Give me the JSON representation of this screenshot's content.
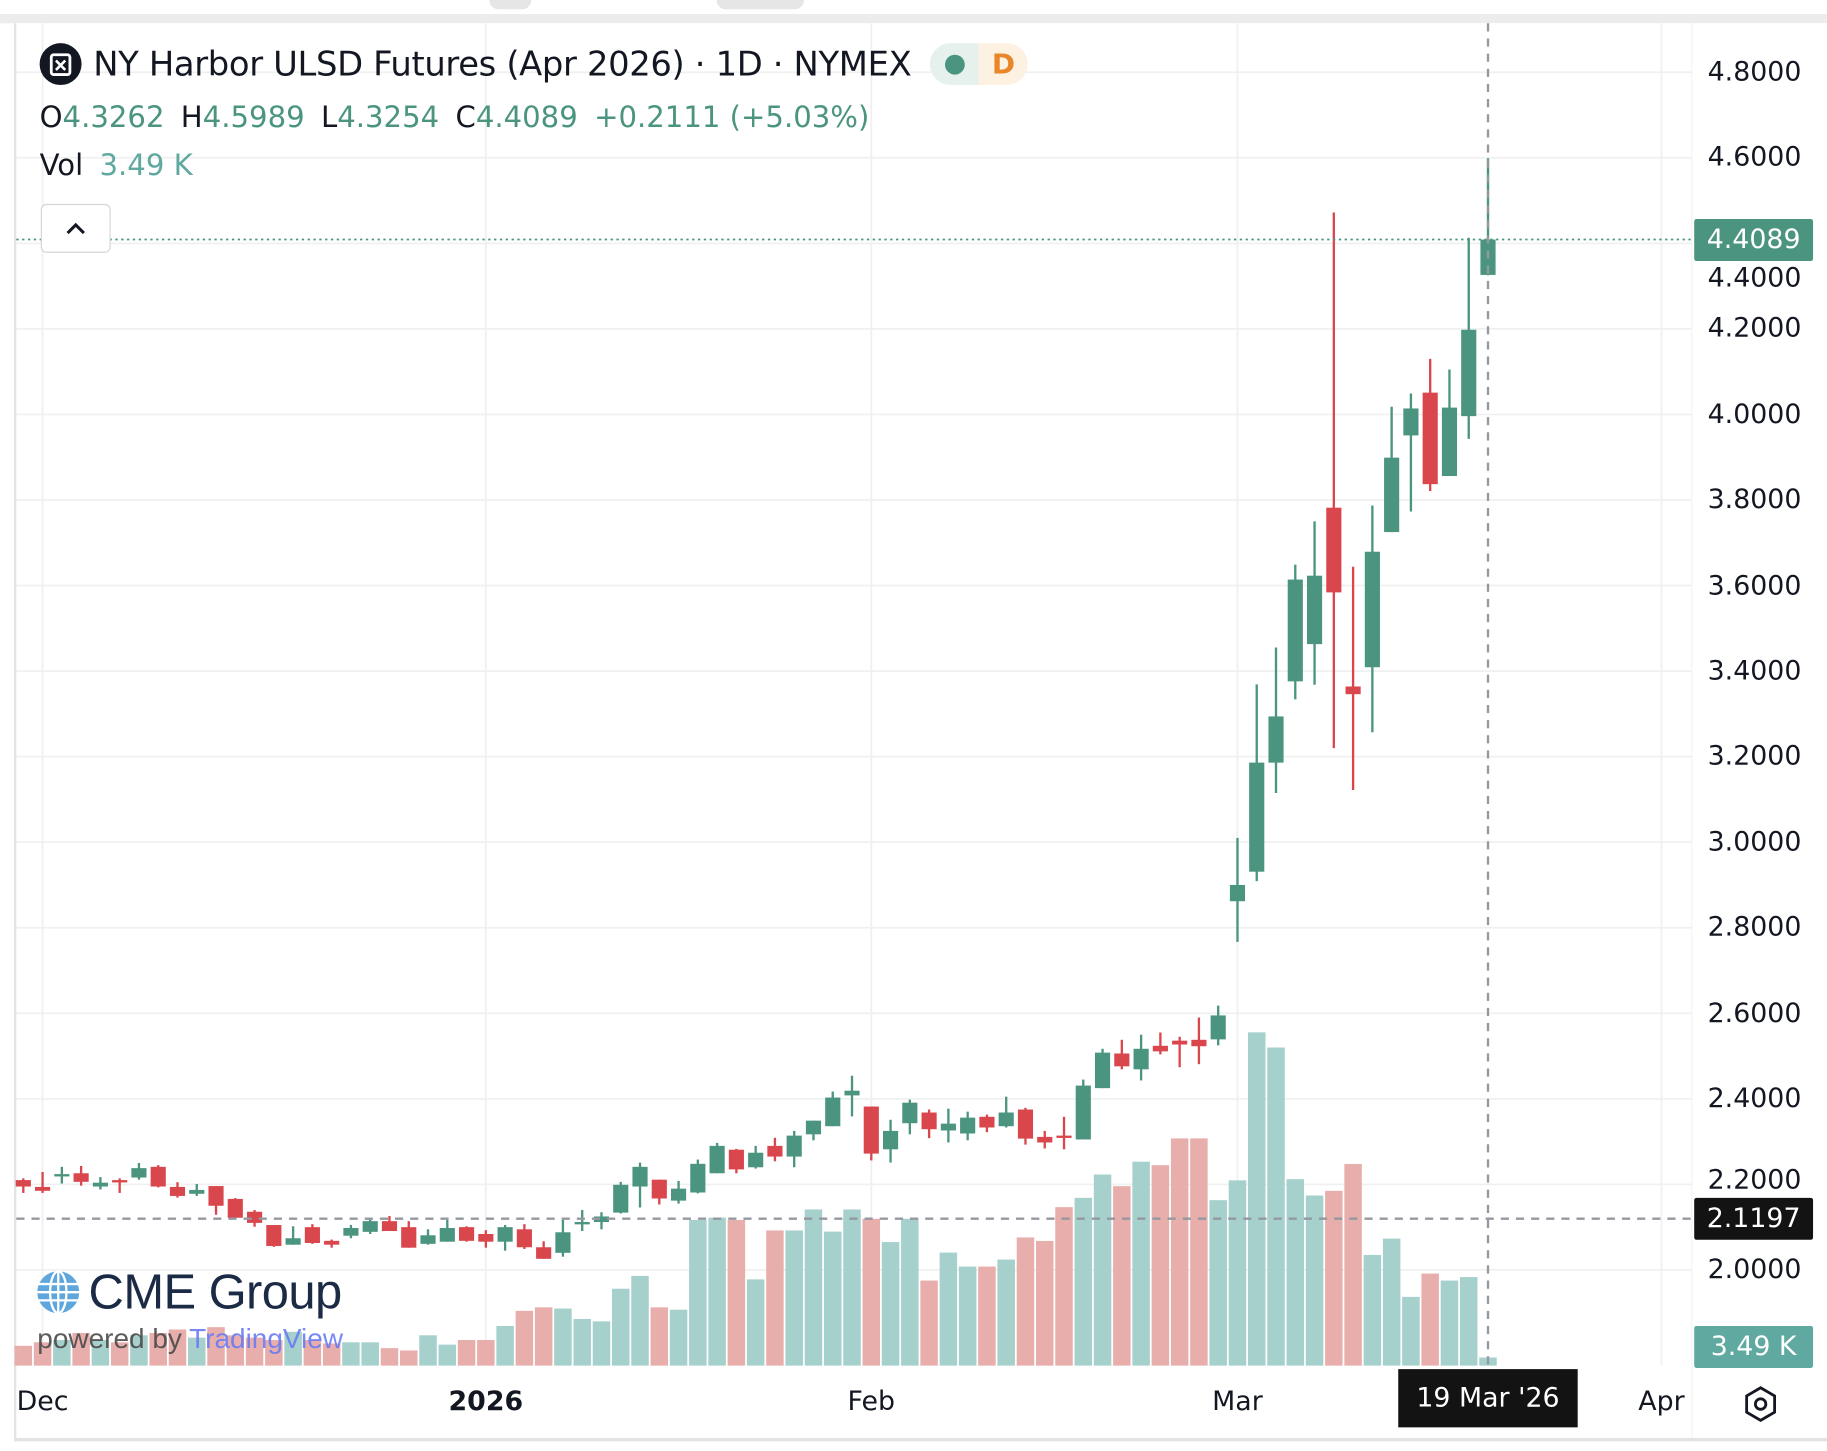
{
  "header": {
    "title": "NY Harbor ULSD Futures (Apr 2026) · 1D · NYMEX",
    "badge_letter": "D",
    "ohlc": {
      "o_label": "O",
      "o": "4.3262",
      "h_label": "H",
      "h": "4.5989",
      "l_label": "L",
      "l": "4.3254",
      "c_label": "C",
      "c": "4.4089",
      "change": "+0.2111 (+5.03%)"
    },
    "vol_label": "Vol",
    "vol_value": "3.49 K"
  },
  "price_axis": {
    "ticks": [
      "4.8000",
      "4.6000",
      "4.4000",
      "4.2000",
      "4.0000",
      "3.8000",
      "3.6000",
      "3.4000",
      "3.2000",
      "3.0000",
      "2.8000",
      "2.6000",
      "2.4000",
      "2.2000",
      "2.0000"
    ],
    "last_price_label": "4.4089",
    "crosshair_price_label": "2.1197",
    "volume_label": "3.49 K"
  },
  "time_axis": {
    "labels": [
      {
        "text": "Dec",
        "bar": 2,
        "bold": false
      },
      {
        "text": "2026",
        "bar": 25,
        "bold": true
      },
      {
        "text": "Feb",
        "bar": 45,
        "bold": false
      },
      {
        "text": "Mar",
        "bar": 64,
        "bold": false
      },
      {
        "text": "Apr",
        "bar": 86,
        "bold": false
      }
    ],
    "crosshair_label": "19 Mar '26"
  },
  "branding": {
    "company": "CME Group",
    "powered_by": "powered by",
    "platform": "TradingView"
  },
  "colors": {
    "up": "#4b9580",
    "down": "#d9474d",
    "vol_up": "#a5d0cb",
    "vol_down": "#e8aeab",
    "last_price": "#4b9580",
    "crosshair": "#9598a1"
  },
  "chart_data": {
    "type": "candlestick",
    "title": "NY Harbor ULSD Futures (Apr 2026) · 1D · NYMEX",
    "ylim": [
      1.85,
      4.85
    ],
    "last_price": 4.4089,
    "crosshair_price": 2.1197,
    "crosshair_bar": 77,
    "volume_unit": "K",
    "ohlc": [
      [
        2.21,
        2.214,
        2.18,
        2.195
      ],
      [
        2.194,
        2.229,
        2.18,
        2.185
      ],
      [
        2.222,
        2.241,
        2.202,
        2.224
      ],
      [
        2.226,
        2.243,
        2.197,
        2.206
      ],
      [
        2.195,
        2.217,
        2.188,
        2.204
      ],
      [
        2.21,
        2.214,
        2.18,
        2.206
      ],
      [
        2.216,
        2.25,
        2.211,
        2.238
      ],
      [
        2.241,
        2.245,
        2.193,
        2.195
      ],
      [
        2.194,
        2.205,
        2.169,
        2.173
      ],
      [
        2.178,
        2.201,
        2.173,
        2.187
      ],
      [
        2.196,
        2.196,
        2.129,
        2.15
      ],
      [
        2.166,
        2.168,
        2.12,
        2.122
      ],
      [
        2.136,
        2.14,
        2.101,
        2.11
      ],
      [
        2.105,
        2.105,
        2.054,
        2.056
      ],
      [
        2.059,
        2.102,
        2.059,
        2.074
      ],
      [
        2.1,
        2.107,
        2.061,
        2.063
      ],
      [
        2.068,
        2.071,
        2.052,
        2.059
      ],
      [
        2.08,
        2.105,
        2.074,
        2.098
      ],
      [
        2.089,
        2.121,
        2.084,
        2.114
      ],
      [
        2.114,
        2.126,
        2.091,
        2.091
      ],
      [
        2.1,
        2.114,
        2.052,
        2.052
      ],
      [
        2.061,
        2.095,
        2.059,
        2.081
      ],
      [
        2.066,
        2.117,
        2.066,
        2.098
      ],
      [
        2.1,
        2.102,
        2.066,
        2.068
      ],
      [
        2.084,
        2.093,
        2.052,
        2.066
      ],
      [
        2.066,
        2.105,
        2.045,
        2.1
      ],
      [
        2.095,
        2.107,
        2.049,
        2.053
      ],
      [
        2.053,
        2.067,
        2.026,
        2.026
      ],
      [
        2.04,
        2.117,
        2.031,
        2.088
      ],
      [
        2.11,
        2.14,
        2.091,
        2.112
      ],
      [
        2.112,
        2.135,
        2.095,
        2.125
      ],
      [
        2.134,
        2.206,
        2.132,
        2.199
      ],
      [
        2.195,
        2.251,
        2.146,
        2.241
      ],
      [
        2.211,
        2.211,
        2.153,
        2.167
      ],
      [
        2.162,
        2.208,
        2.155,
        2.19
      ],
      [
        2.181,
        2.258,
        2.179,
        2.248
      ],
      [
        2.226,
        2.297,
        2.226,
        2.29
      ],
      [
        2.281,
        2.283,
        2.226,
        2.235
      ],
      [
        2.24,
        2.29,
        2.237,
        2.274
      ],
      [
        2.29,
        2.309,
        2.254,
        2.265
      ],
      [
        2.265,
        2.325,
        2.24,
        2.314
      ],
      [
        2.317,
        2.349,
        2.303,
        2.349
      ],
      [
        2.336,
        2.417,
        2.336,
        2.403
      ],
      [
        2.408,
        2.454,
        2.359,
        2.419
      ],
      [
        2.382,
        2.382,
        2.256,
        2.272
      ],
      [
        2.282,
        2.351,
        2.251,
        2.325
      ],
      [
        2.343,
        2.398,
        2.317,
        2.391
      ],
      [
        2.368,
        2.375,
        2.308,
        2.329
      ],
      [
        2.326,
        2.377,
        2.298,
        2.342
      ],
      [
        2.319,
        2.37,
        2.303,
        2.356
      ],
      [
        2.358,
        2.363,
        2.322,
        2.333
      ],
      [
        2.336,
        2.405,
        2.333,
        2.368
      ],
      [
        2.375,
        2.379,
        2.293,
        2.307
      ],
      [
        2.311,
        2.325,
        2.284,
        2.298
      ],
      [
        2.314,
        2.358,
        2.282,
        2.31
      ],
      [
        2.305,
        2.445,
        2.305,
        2.431
      ],
      [
        2.425,
        2.517,
        2.425,
        2.508
      ],
      [
        2.506,
        2.538,
        2.469,
        2.476
      ],
      [
        2.469,
        2.55,
        2.443,
        2.517
      ],
      [
        2.524,
        2.555,
        2.504,
        2.511
      ],
      [
        2.536,
        2.545,
        2.474,
        2.527
      ],
      [
        2.538,
        2.59,
        2.481,
        2.523
      ],
      [
        2.539,
        2.618,
        2.525,
        2.595
      ],
      [
        2.862,
        3.01,
        2.767,
        2.9
      ],
      [
        2.931,
        3.369,
        2.909,
        3.186
      ],
      [
        3.186,
        3.455,
        3.115,
        3.294
      ],
      [
        3.376,
        3.649,
        3.334,
        3.614
      ],
      [
        3.463,
        3.75,
        3.368,
        3.623
      ],
      [
        3.782,
        4.472,
        3.22,
        3.584
      ],
      [
        3.364,
        3.644,
        3.122,
        3.346
      ],
      [
        3.409,
        3.787,
        3.257,
        3.679
      ],
      [
        3.725,
        4.018,
        3.725,
        3.899
      ],
      [
        3.951,
        4.049,
        3.773,
        4.014
      ],
      [
        4.051,
        4.13,
        3.821,
        3.837
      ],
      [
        3.856,
        4.105,
        3.856,
        4.016
      ],
      [
        3.996,
        4.413,
        3.943,
        4.198
      ],
      [
        4.3262,
        4.5989,
        4.3254,
        4.4089
      ]
    ],
    "volume": [
      8.5,
      10,
      11,
      14,
      11,
      10,
      13,
      14,
      15.5,
      12,
      16.5,
      13,
      12,
      11,
      14.5,
      11,
      9.5,
      10,
      10,
      7.5,
      6.5,
      13,
      9,
      11,
      11,
      17,
      23.5,
      25,
      24.5,
      20,
      19,
      33,
      38.5,
      25,
      24,
      62.5,
      63.5,
      62.5,
      37,
      58,
      58,
      67,
      57.5,
      67,
      63,
      53,
      63,
      36.5,
      48.5,
      42.5,
      42.5,
      45.5,
      55,
      53.5,
      68,
      72,
      82,
      77,
      87.5,
      86,
      97.5,
      97.5,
      71,
      79.5,
      143,
      136.5,
      80,
      73,
      75,
      86.5,
      47.5,
      54.5,
      29.5,
      39.5,
      36.5,
      38,
      3.49
    ]
  }
}
